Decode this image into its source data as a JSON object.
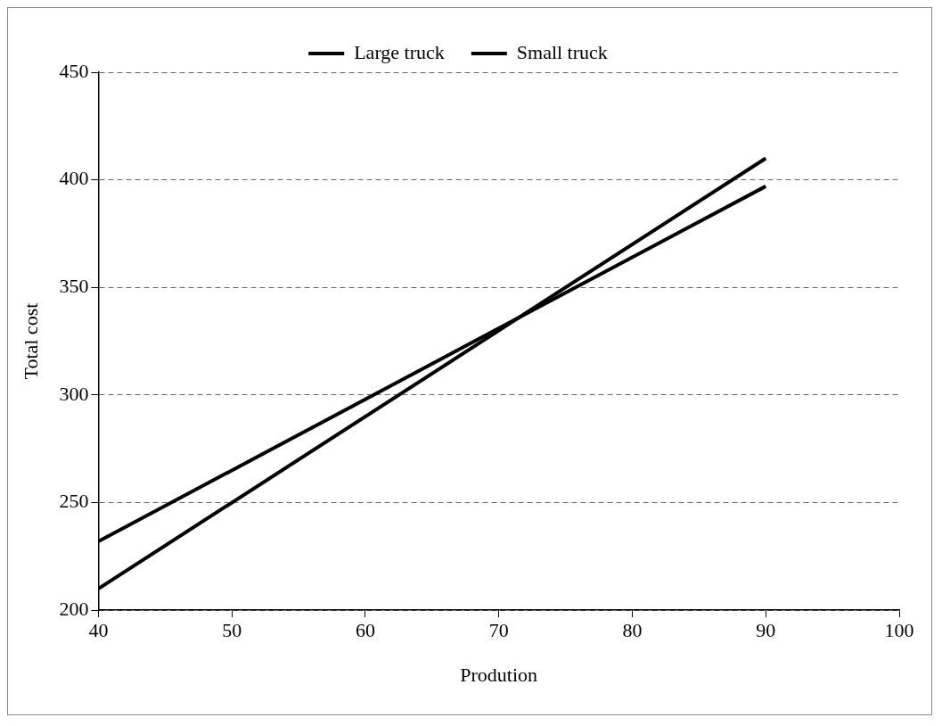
{
  "chart_data": {
    "type": "line",
    "xlabel": "Prodution",
    "ylabel": "Total cost",
    "x": [
      40,
      90
    ],
    "series": [
      {
        "name": "Large truck",
        "color": "#000000",
        "values": [
          232,
          397
        ]
      },
      {
        "name": "Small truck",
        "color": "#000000",
        "values": [
          210,
          410
        ]
      }
    ],
    "xlim": [
      40,
      100
    ],
    "xticks": [
      40,
      50,
      60,
      70,
      80,
      90,
      100
    ],
    "ylim": [
      200,
      450
    ],
    "yticks": [
      200,
      250,
      300,
      350,
      400,
      450
    ],
    "grid": "y",
    "legend": "top",
    "marker": "none",
    "line_style": "solid"
  }
}
